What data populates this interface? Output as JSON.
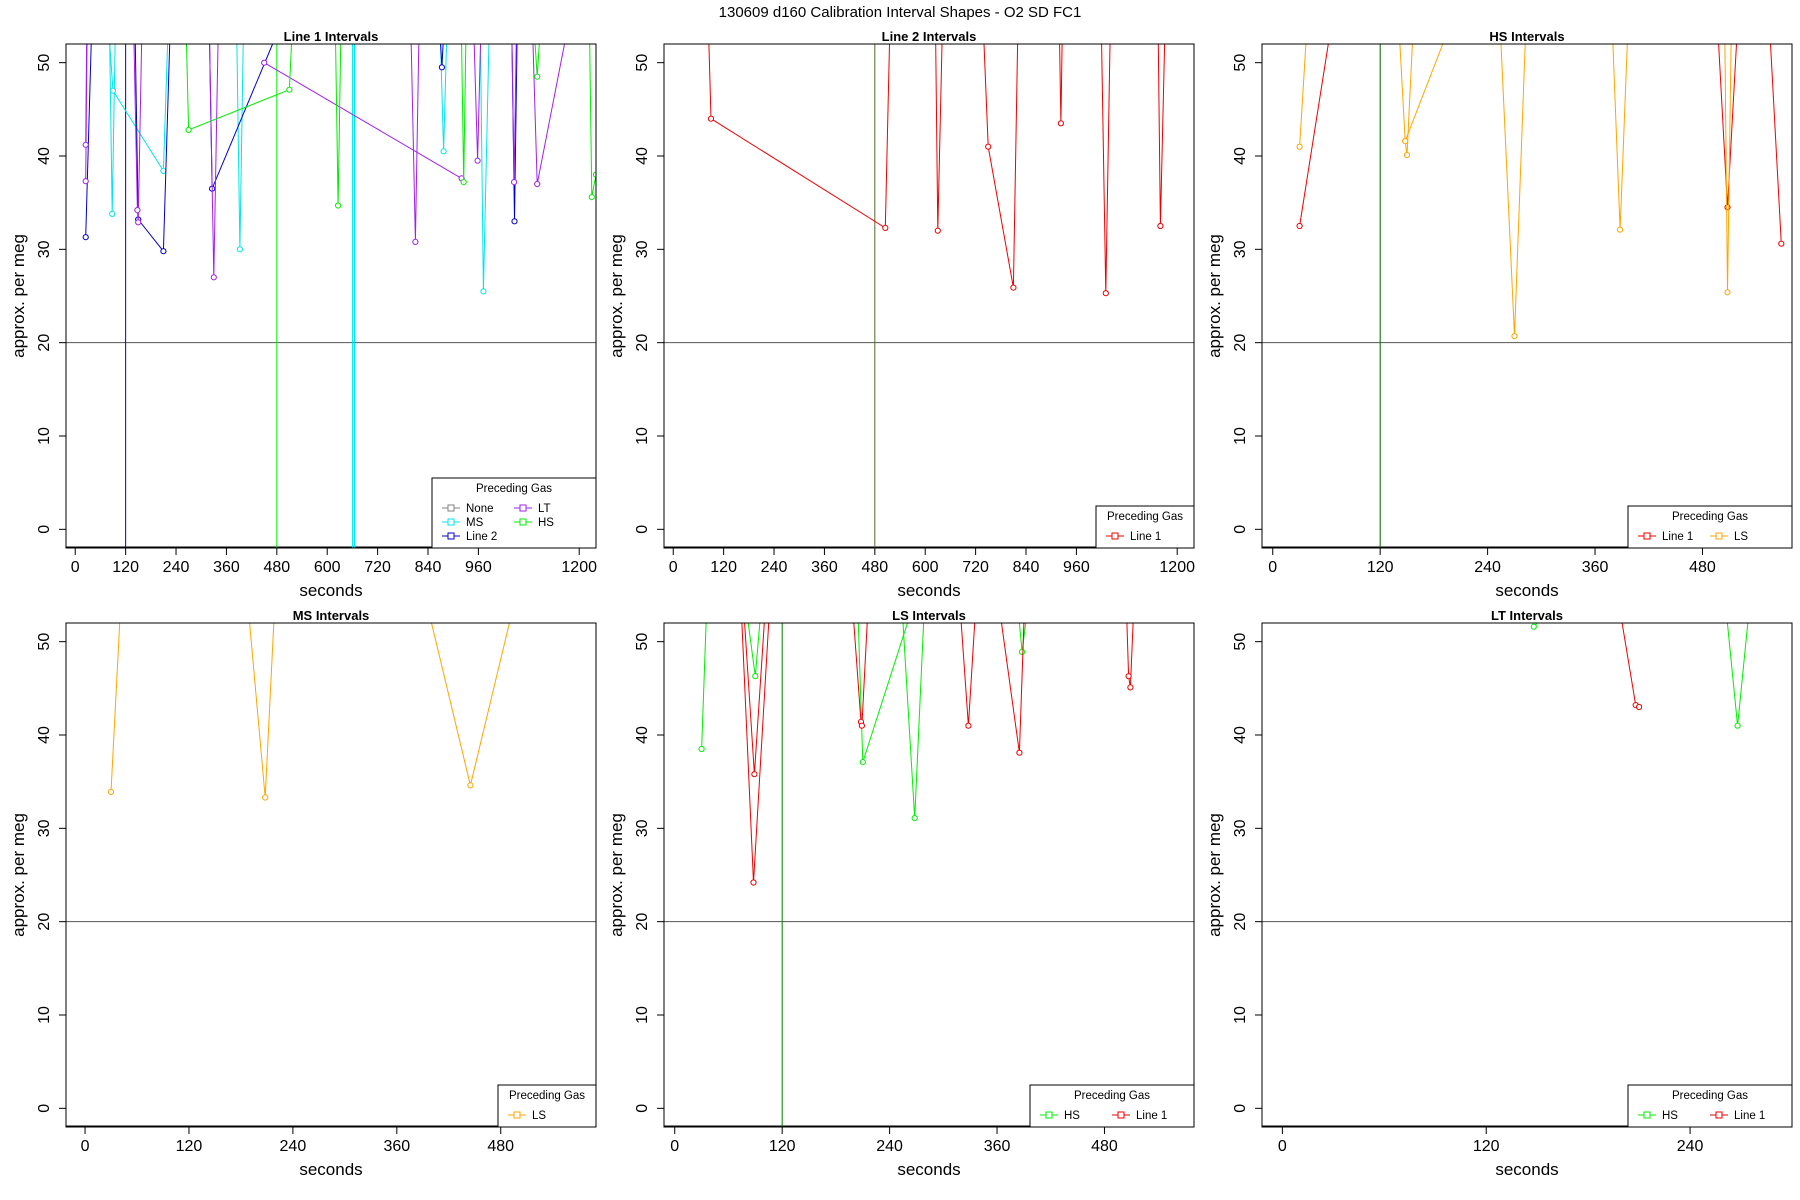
{
  "figure_title": "130609   d160   Calibration Interval Shapes - O2 SD FC1",
  "colors": {
    "None": "#808080",
    "MS": "#00e5ee",
    "Line 2": "#0000cd",
    "LT": "#a020f0",
    "HS": "#00ee00",
    "Line 1": "#ee0000",
    "LS": "#ffa500",
    "vline_line2_panel": "#556b2f",
    "vline_hs_panel": "#006400",
    "vline_ls_panel": "#008000",
    "hline": "#555555"
  },
  "chart_data": [
    {
      "type": "line",
      "title": "Line 1 Intervals",
      "xlabel": "seconds",
      "ylabel": "approx. per meg",
      "xlim": [
        -22,
        1240
      ],
      "ylim": [
        -2,
        52
      ],
      "xticks": [
        0,
        120,
        240,
        360,
        480,
        600,
        720,
        840,
        960,
        1200
      ],
      "yticks": [
        0,
        10,
        20,
        30,
        40,
        50
      ],
      "hline": 20,
      "vlines": [
        {
          "x": 120,
          "series": "Line 2"
        },
        {
          "x": 480,
          "series": "HS"
        },
        {
          "x": 660,
          "series": "MS"
        }
      ],
      "legend": {
        "title": "Preceding Gas",
        "position": "bottom-right",
        "columns": 2,
        "entries": [
          "None",
          "MS",
          "Line 2",
          "LT",
          "HS"
        ]
      },
      "series": [
        {
          "name": "MS",
          "segments": [
            [
              [
                82,
                52
              ],
              [
                88,
                33.8
              ],
              [
                95,
                52
              ]
            ],
            [
              [
                82,
                52
              ],
              [
                90,
                47
              ],
              [
                210,
                38.4
              ],
              [
                220,
                52
              ]
            ],
            [
              [
                385,
                52
              ],
              [
                392,
                30
              ],
              [
                400,
                52
              ]
            ],
            [
              [
                870,
                52
              ],
              [
                877,
                40.5
              ],
              [
                884,
                52
              ]
            ],
            [
              [
                965,
                52
              ],
              [
                972,
                25.5
              ],
              [
                985,
                52
              ]
            ],
            [
              [
                665,
                52
              ],
              [
                665,
                -2
              ]
            ]
          ]
        },
        {
          "name": "Line 2",
          "segments": [
            [
              [
                25,
                31.3
              ],
              [
                38,
                52
              ]
            ],
            [
              [
                143,
                52
              ],
              [
                150,
                33.2
              ],
              [
                210,
                29.8
              ],
              [
                225,
                52
              ]
            ],
            [
              [
                320,
                52
              ],
              [
                326,
                36.5
              ],
              [
                470,
                52
              ]
            ],
            [
              [
                870,
                52
              ],
              [
                873,
                49.5
              ],
              [
                876,
                52
              ]
            ],
            [
              [
                1040,
                52
              ],
              [
                1046,
                33
              ],
              [
                1052,
                52
              ]
            ]
          ]
        },
        {
          "name": "LT",
          "segments": [
            [
              [
                25,
                37.3
              ],
              [
                28,
                52
              ]
            ],
            [
              [
                25,
                41.2
              ],
              [
                27,
                52
              ]
            ],
            [
              [
                140,
                52
              ],
              [
                148,
                34.2
              ],
              [
                150,
                32.9
              ],
              [
                158,
                52
              ]
            ],
            [
              [
                320,
                52
              ],
              [
                330,
                27
              ],
              [
                340,
                52
              ]
            ],
            [
              [
                450,
                50
              ],
              [
                920,
                37.6
              ]
            ],
            [
              [
                800,
                52
              ],
              [
                810,
                30.8
              ],
              [
                818,
                52
              ]
            ],
            [
              [
                950,
                52
              ],
              [
                958,
                39.5
              ],
              [
                965,
                52
              ]
            ],
            [
              [
                1040,
                52
              ],
              [
                1045,
                37.2
              ],
              [
                1050,
                52
              ]
            ],
            [
              [
                1090,
                52
              ],
              [
                1100,
                37
              ],
              [
                1165,
                52
              ]
            ]
          ]
        },
        {
          "name": "HS",
          "segments": [
            [
              [
                265,
                52
              ],
              [
                270,
                42.8
              ],
              [
                510,
                47.1
              ],
              [
                515,
                52
              ]
            ],
            [
              [
                620,
                52
              ],
              [
                626,
                34.7
              ],
              [
                632,
                52
              ]
            ],
            [
              [
                920,
                52
              ],
              [
                925,
                37.2
              ],
              [
                930,
                52
              ]
            ],
            [
              [
                1095,
                52
              ],
              [
                1100,
                48.5
              ],
              [
                1105,
                52
              ]
            ],
            [
              [
                1225,
                52
              ],
              [
                1230,
                35.6
              ],
              [
                1240,
                38
              ]
            ]
          ]
        }
      ]
    },
    {
      "type": "line",
      "title": "Line 2 Intervals",
      "xlabel": "seconds",
      "ylabel": "approx. per meg",
      "xlim": [
        -22,
        1240
      ],
      "ylim": [
        -2,
        52
      ],
      "xticks": [
        0,
        120,
        240,
        360,
        480,
        600,
        720,
        840,
        960,
        1200
      ],
      "yticks": [
        0,
        10,
        20,
        30,
        40,
        50
      ],
      "hline": 20,
      "vlines": [
        {
          "x": 480,
          "series": "vline_line2_panel"
        }
      ],
      "legend": {
        "title": "Preceding Gas",
        "position": "bottom-right",
        "columns": 1,
        "entries": [
          "Line 1"
        ]
      },
      "series": [
        {
          "name": "Line 1",
          "segments": [
            [
              [
                85,
                52
              ],
              [
                90,
                44
              ],
              [
                505,
                32.3
              ],
              [
                515,
                52
              ]
            ],
            [
              [
                625,
                52
              ],
              [
                630,
                32
              ],
              [
                640,
                52
              ]
            ],
            [
              [
                740,
                52
              ],
              [
                750,
                41
              ],
              [
                810,
                25.9
              ],
              [
                820,
                52
              ]
            ],
            [
              [
                920,
                52
              ],
              [
                923,
                43.5
              ],
              [
                926,
                52
              ]
            ],
            [
              [
                1020,
                52
              ],
              [
                1030,
                25.3
              ],
              [
                1040,
                52
              ]
            ],
            [
              [
                1155,
                52
              ],
              [
                1160,
                32.5
              ],
              [
                1170,
                52
              ]
            ]
          ]
        }
      ]
    },
    {
      "type": "line",
      "title": "HS Intervals",
      "xlabel": "seconds",
      "ylabel": "approx. per meg",
      "xlim": [
        -12,
        580
      ],
      "ylim": [
        -2,
        52
      ],
      "xticks": [
        0,
        120,
        240,
        360,
        480
      ],
      "yticks": [
        0,
        10,
        20,
        30,
        40,
        50
      ],
      "hline": 20,
      "vlines": [
        {
          "x": 120,
          "series": "vline_hs_panel"
        }
      ],
      "legend": {
        "title": "Preceding Gas",
        "position": "bottom-right",
        "columns": 2,
        "entries": [
          "Line 1",
          "LS"
        ]
      },
      "series": [
        {
          "name": "Line 1",
          "segments": [
            [
              [
                30,
                32.5
              ],
              [
                62,
                52
              ]
            ],
            [
              [
                498,
                52
              ],
              [
                508,
                34.5
              ],
              [
                518,
                52
              ]
            ],
            [
              [
                556,
                52
              ],
              [
                568,
                30.6
              ]
            ]
          ]
        },
        {
          "name": "LS",
          "segments": [
            [
              [
                30,
                41
              ],
              [
                37,
                52
              ]
            ],
            [
              [
                142,
                52
              ],
              [
                148,
                41.6
              ],
              [
                150,
                40.1
              ],
              [
                156,
                52
              ]
            ],
            [
              [
                148,
                41.6
              ],
              [
                190,
                52
              ]
            ],
            [
              [
                255,
                52
              ],
              [
                270,
                20.7
              ],
              [
                282,
                52
              ]
            ],
            [
              [
                380,
                52
              ],
              [
                388,
                32.1
              ],
              [
                396,
                52
              ]
            ],
            [
              [
                505,
                52
              ],
              [
                508,
                25.4
              ],
              [
                512,
                52
              ]
            ]
          ]
        }
      ]
    },
    {
      "type": "line",
      "title": "MS Intervals",
      "xlabel": "seconds",
      "ylabel": "approx. per meg",
      "xlim": [
        -22,
        590
      ],
      "ylim": [
        -2,
        52
      ],
      "xticks": [
        0,
        120,
        240,
        360,
        480
      ],
      "yticks": [
        0,
        10,
        20,
        30,
        40,
        50
      ],
      "hline": 20,
      "vlines": [],
      "legend": {
        "title": "Preceding Gas",
        "position": "bottom-right",
        "columns": 1,
        "entries": [
          "LS"
        ]
      },
      "series": [
        {
          "name": "LS",
          "segments": [
            [
              [
                30,
                33.9
              ],
              [
                40,
                52
              ]
            ],
            [
              [
                190,
                52
              ],
              [
                208,
                33.3
              ],
              [
                218,
                52
              ]
            ],
            [
              [
                400,
                52
              ],
              [
                445,
                34.6
              ],
              [
                490,
                52
              ]
            ]
          ]
        }
      ]
    },
    {
      "type": "line",
      "title": "LS Intervals",
      "xlabel": "seconds",
      "ylabel": "approx. per meg",
      "xlim": [
        -12,
        580
      ],
      "ylim": [
        -2,
        52
      ],
      "xticks": [
        0,
        120,
        240,
        360,
        480
      ],
      "yticks": [
        0,
        10,
        20,
        30,
        40,
        50
      ],
      "hline": 20,
      "vlines": [
        {
          "x": 120,
          "series": "vline_ls_panel"
        }
      ],
      "legend": {
        "title": "Preceding Gas",
        "position": "bottom-right",
        "columns": 2,
        "entries": [
          "HS",
          "Line 1"
        ]
      },
      "series": [
        {
          "name": "HS",
          "segments": [
            [
              [
                30,
                38.5
              ],
              [
                35,
                52
              ]
            ],
            [
              [
                82,
                52
              ],
              [
                90,
                46.3
              ],
              [
                95,
                52
              ]
            ],
            [
              [
                205,
                52
              ],
              [
                210,
                37.1
              ],
              [
                260,
                52
              ]
            ],
            [
              [
                255,
                52
              ],
              [
                268,
                31.1
              ],
              [
                278,
                52
              ]
            ],
            [
              [
                385,
                52
              ],
              [
                388,
                48.9
              ],
              [
                392,
                52
              ]
            ]
          ]
        },
        {
          "name": "Line 1",
          "segments": [
            [
              [
                75,
                52
              ],
              [
                88,
                24.2
              ],
              [
                105,
                52
              ]
            ],
            [
              [
                78,
                52
              ],
              [
                89,
                35.8
              ],
              [
                100,
                52
              ]
            ],
            [
              [
                200,
                52
              ],
              [
                208,
                41.4
              ],
              [
                209,
                41
              ],
              [
                215,
                52
              ]
            ],
            [
              [
                320,
                52
              ],
              [
                328,
                41
              ],
              [
                335,
                52
              ]
            ],
            [
              [
                365,
                52
              ],
              [
                385,
                38.1
              ],
              [
                390,
                52
              ]
            ],
            [
              [
                505,
                52
              ],
              [
                507,
                46.3
              ],
              [
                509,
                45.1
              ],
              [
                512,
                52
              ]
            ]
          ]
        }
      ]
    },
    {
      "type": "line",
      "title": "LT Intervals",
      "xlabel": "seconds",
      "ylabel": "approx. per meg",
      "xlim": [
        -12,
        300
      ],
      "ylim": [
        -2,
        52
      ],
      "xticks": [
        0,
        120,
        240
      ],
      "yticks": [
        0,
        10,
        20,
        30,
        40,
        50
      ],
      "hline": 20,
      "vlines": [],
      "legend": {
        "title": "Preceding Gas",
        "position": "bottom-right",
        "columns": 2,
        "entries": [
          "HS",
          "Line 1"
        ]
      },
      "series": [
        {
          "name": "HS",
          "segments": [
            [
              [
                148,
                51.6
              ],
              [
                150,
                52
              ]
            ],
            [
              [
                262,
                52
              ],
              [
                268,
                41
              ],
              [
                274,
                52
              ]
            ]
          ]
        },
        {
          "name": "Line 1",
          "segments": [
            [
              [
                200,
                52
              ],
              [
                208,
                43.2
              ],
              [
                210,
                43
              ]
            ]
          ]
        }
      ]
    }
  ]
}
